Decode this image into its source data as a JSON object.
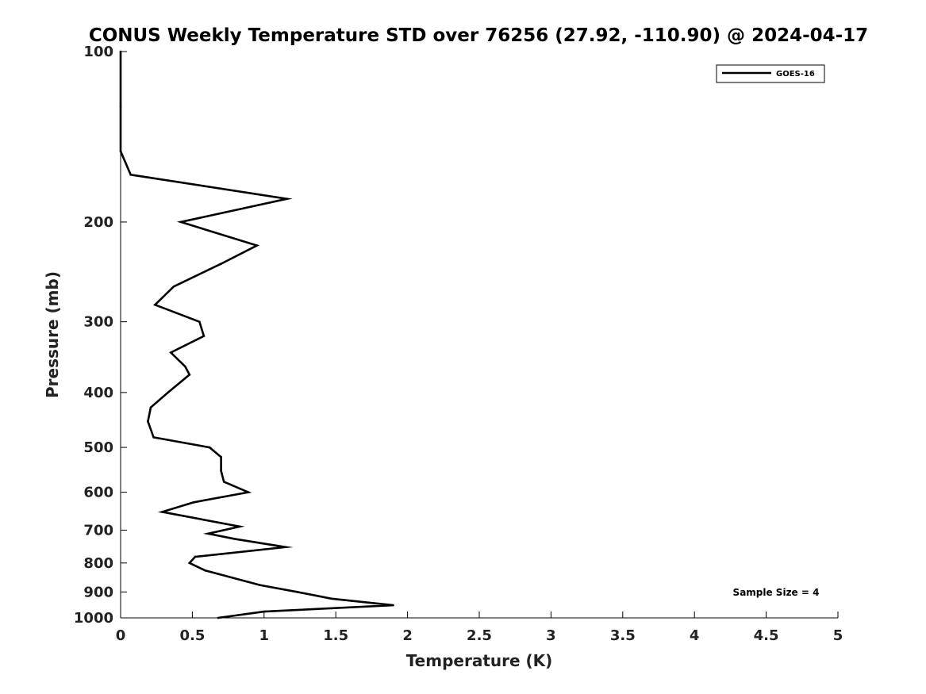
{
  "chart_data": {
    "type": "line",
    "title": "CONUS Weekly Temperature STD over 76256 (27.92, -110.90) @ 2024-04-17",
    "xlabel": "Temperature (K)",
    "ylabel": "Pressure (mb)",
    "xlim": [
      0,
      5
    ],
    "ylim": [
      1000,
      100
    ],
    "yscale": "log",
    "x_ticks": [
      "0",
      "0.5",
      "1",
      "1.5",
      "2",
      "2.5",
      "3",
      "3.5",
      "4",
      "4.5",
      "5"
    ],
    "y_ticks": [
      "100",
      "200",
      "300",
      "400",
      "500",
      "600",
      "700",
      "800",
      "900",
      "1000"
    ],
    "grid": false,
    "legend_position": "top-right",
    "annotation": "Sample Size = 4",
    "series": [
      {
        "name": "GOES-16",
        "color": "#000000",
        "points": [
          {
            "x": 0.0,
            "y": 100
          },
          {
            "x": 0.0,
            "y": 125
          },
          {
            "x": 0.0,
            "y": 150
          },
          {
            "x": 0.07,
            "y": 165
          },
          {
            "x": 1.16,
            "y": 182
          },
          {
            "x": 0.42,
            "y": 200
          },
          {
            "x": 0.95,
            "y": 220
          },
          {
            "x": 0.7,
            "y": 237
          },
          {
            "x": 0.37,
            "y": 260
          },
          {
            "x": 0.24,
            "y": 280
          },
          {
            "x": 0.55,
            "y": 300
          },
          {
            "x": 0.58,
            "y": 318
          },
          {
            "x": 0.35,
            "y": 340
          },
          {
            "x": 0.45,
            "y": 360
          },
          {
            "x": 0.48,
            "y": 372
          },
          {
            "x": 0.33,
            "y": 400
          },
          {
            "x": 0.21,
            "y": 425
          },
          {
            "x": 0.19,
            "y": 450
          },
          {
            "x": 0.23,
            "y": 480
          },
          {
            "x": 0.62,
            "y": 500
          },
          {
            "x": 0.7,
            "y": 520
          },
          {
            "x": 0.7,
            "y": 550
          },
          {
            "x": 0.72,
            "y": 575
          },
          {
            "x": 0.89,
            "y": 600
          },
          {
            "x": 0.51,
            "y": 625
          },
          {
            "x": 0.29,
            "y": 650
          },
          {
            "x": 0.83,
            "y": 690
          },
          {
            "x": 0.61,
            "y": 710
          },
          {
            "x": 0.79,
            "y": 725
          },
          {
            "x": 1.15,
            "y": 750
          },
          {
            "x": 0.52,
            "y": 780
          },
          {
            "x": 0.48,
            "y": 800
          },
          {
            "x": 0.59,
            "y": 825
          },
          {
            "x": 0.97,
            "y": 875
          },
          {
            "x": 1.23,
            "y": 900
          },
          {
            "x": 1.47,
            "y": 925
          },
          {
            "x": 1.9,
            "y": 950
          },
          {
            "x": 1.0,
            "y": 975
          },
          {
            "x": 0.68,
            "y": 1000
          }
        ]
      }
    ]
  }
}
